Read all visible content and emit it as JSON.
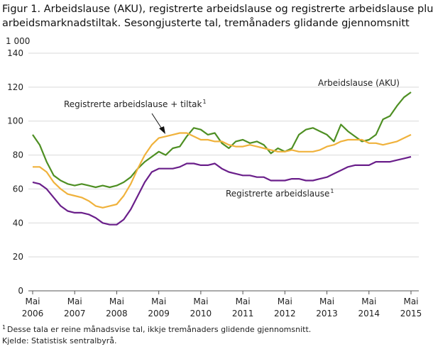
{
  "chart_data": {
    "type": "line",
    "title": [
      "Figur 1. Arbeidslause (AKU), registrerte arbeidslause og registrerte arbeidslause pluss",
      "arbeidsmarknadstiltak. Sesongjusterte tal, tremånaders glidande gjennomsnitt"
    ],
    "y_unit": "1 000",
    "ylim": [
      0,
      140
    ],
    "yticks": [
      0,
      20,
      40,
      60,
      80,
      100,
      120,
      140
    ],
    "xlim": [
      0,
      54
    ],
    "xticks": [
      {
        "value": 0,
        "label": [
          "Mai",
          "2006"
        ]
      },
      {
        "value": 6,
        "label": [
          "Mai",
          "2007"
        ]
      },
      {
        "value": 12,
        "label": [
          "Mai",
          "2008"
        ]
      },
      {
        "value": 18,
        "label": [
          "Mai",
          "2009"
        ]
      },
      {
        "value": 24,
        "label": [
          "Mai",
          "2010"
        ]
      },
      {
        "value": 30,
        "label": [
          "Mai",
          "2011"
        ]
      },
      {
        "value": 36,
        "label": [
          "Mai",
          "2012"
        ]
      },
      {
        "value": 42,
        "label": [
          "Mai",
          "2013"
        ]
      },
      {
        "value": 48,
        "label": [
          "Mai",
          "2014"
        ]
      },
      {
        "value": 54,
        "label": [
          "Mai",
          "2015"
        ]
      }
    ],
    "grid": true,
    "series": [
      {
        "name": "Arbeidslause  (AKU)",
        "color": "#4e8f23",
        "values": [
          92,
          86,
          76,
          68,
          65,
          63,
          62,
          63,
          62,
          61,
          62,
          61,
          62,
          64,
          67,
          72,
          76,
          79,
          82,
          80,
          84,
          85,
          91,
          96,
          95,
          92,
          93,
          87,
          84,
          88,
          89,
          87,
          88,
          86,
          81,
          84,
          82,
          84,
          92,
          95,
          96,
          94,
          92,
          88,
          98,
          94,
          91,
          88,
          89,
          92,
          101,
          103,
          109,
          114,
          117
        ]
      },
      {
        "name": "Registrerte  arbeidslause  + tiltak",
        "color": "#f0b23c",
        "footnote_marker": "1",
        "values": [
          73,
          73,
          70,
          64,
          60,
          57,
          56,
          55,
          53,
          50,
          49,
          50,
          51,
          56,
          63,
          72,
          80,
          86,
          90,
          91,
          92,
          93,
          93,
          91,
          89,
          89,
          88,
          88,
          86,
          85,
          85,
          86,
          85,
          84,
          83,
          82,
          82,
          83,
          82,
          82,
          82,
          83,
          85,
          86,
          88,
          89,
          89,
          89,
          87,
          87,
          86,
          87,
          88,
          90,
          92
        ]
      },
      {
        "name": "Registrerte  arbeidslause",
        "color": "#6a1f8a",
        "footnote_marker": "1",
        "values": [
          64,
          63,
          60,
          55,
          50,
          47,
          46,
          46,
          45,
          43,
          40,
          39,
          39,
          42,
          48,
          56,
          64,
          70,
          72,
          72,
          72,
          73,
          75,
          75,
          74,
          74,
          75,
          72,
          70,
          69,
          68,
          68,
          67,
          67,
          65,
          65,
          65,
          66,
          66,
          65,
          65,
          66,
          67,
          69,
          71,
          73,
          74,
          74,
          74,
          76,
          76,
          76,
          77,
          78,
          79
        ]
      }
    ],
    "footnote": "Desse tala er reine månadsvise tal, ikkje tremånaders glidende gjennomsnitt.",
    "footnote_marker": "1",
    "source": "Kjelde: Statistisk sentralbyrå."
  }
}
